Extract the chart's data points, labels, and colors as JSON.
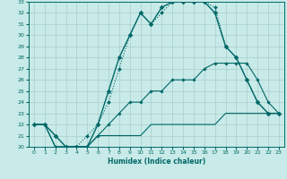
{
  "title": "",
  "xlabel": "Humidex (Indice chaleur)",
  "background_color": "#c8eae8",
  "grid_color": "#a8ceca",
  "line_color": "#006868",
  "xlim": [
    -0.5,
    23.5
  ],
  "ylim": [
    20,
    33
  ],
  "xticks": [
    0,
    1,
    2,
    3,
    4,
    5,
    6,
    7,
    8,
    9,
    10,
    11,
    12,
    13,
    14,
    15,
    16,
    17,
    18,
    19,
    20,
    21,
    22,
    23
  ],
  "yticks": [
    20,
    21,
    22,
    23,
    24,
    25,
    26,
    27,
    28,
    29,
    30,
    31,
    32,
    33
  ],
  "series": [
    {
      "x": [
        0,
        1,
        2,
        3,
        4,
        5,
        6,
        7,
        8,
        9,
        10,
        11,
        12,
        13,
        14,
        15,
        16,
        17,
        18,
        19,
        20,
        21,
        22,
        23
      ],
      "y": [
        22,
        22,
        21,
        20,
        20,
        20,
        22,
        25,
        28,
        30,
        32,
        31,
        32.5,
        33,
        33,
        33,
        33,
        32,
        29,
        28,
        26,
        24,
        23,
        23
      ],
      "marker": "D",
      "markersize": 2.5,
      "linewidth": 1.0,
      "linestyle": "-"
    },
    {
      "x": [
        0,
        1,
        2,
        3,
        4,
        5,
        6,
        7,
        8,
        9,
        10,
        11,
        12,
        13,
        14,
        15,
        16,
        17,
        18,
        19,
        20,
        21,
        22,
        23
      ],
      "y": [
        22,
        22,
        21,
        20,
        20,
        21,
        22,
        24,
        27,
        30,
        32,
        31,
        32,
        33,
        33,
        33,
        33,
        32.5,
        29,
        28,
        26,
        24,
        23,
        23
      ],
      "marker": "D",
      "markersize": 2.0,
      "linewidth": 0.8,
      "linestyle": ":"
    },
    {
      "x": [
        0,
        1,
        2,
        3,
        4,
        5,
        6,
        7,
        8,
        9,
        10,
        11,
        12,
        13,
        14,
        15,
        16,
        17,
        18,
        19,
        20,
        21,
        22,
        23
      ],
      "y": [
        22,
        22,
        20,
        20,
        20,
        20,
        21,
        22,
        23,
        24,
        24,
        25,
        25,
        26,
        26,
        26,
        27,
        27.5,
        27.5,
        27.5,
        27.5,
        26,
        24,
        23
      ],
      "marker": "D",
      "markersize": 1.8,
      "linewidth": 0.8,
      "linestyle": "-"
    },
    {
      "x": [
        0,
        1,
        2,
        3,
        4,
        5,
        6,
        7,
        8,
        9,
        10,
        11,
        12,
        13,
        14,
        15,
        16,
        17,
        18,
        19,
        20,
        21,
        22,
        23
      ],
      "y": [
        22,
        22,
        20,
        20,
        20,
        20,
        21,
        21,
        21,
        21,
        21,
        22,
        22,
        22,
        22,
        22,
        22,
        22,
        23,
        23,
        23,
        23,
        23,
        23
      ],
      "marker": null,
      "markersize": 0,
      "linewidth": 0.8,
      "linestyle": "-"
    }
  ]
}
